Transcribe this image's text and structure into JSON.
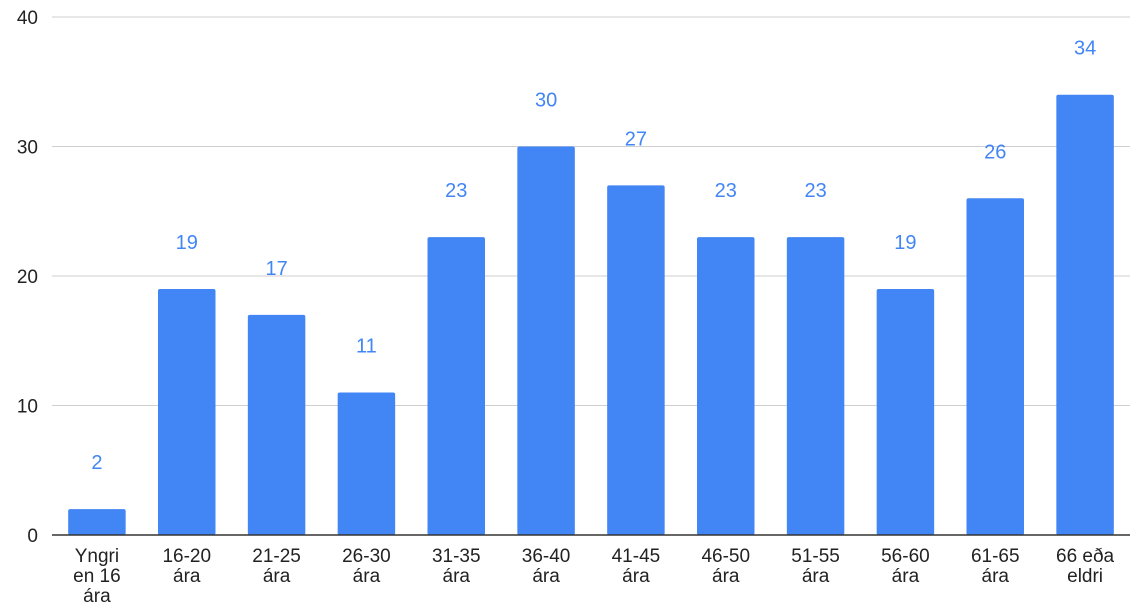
{
  "chart_data": {
    "type": "bar",
    "categories": [
      "Yngri en 16 ára",
      "16-20 ára",
      "21-25 ára",
      "26-30 ára",
      "31-35 ára",
      "36-40 ára",
      "41-45 ára",
      "46-50 ára",
      "51-55 ára",
      "56-60 ára",
      "61-65 ára",
      "66 eða eldri"
    ],
    "category_lines": [
      [
        "Yngri",
        "en 16",
        "ára"
      ],
      [
        "16-20",
        "ára"
      ],
      [
        "21-25",
        "ára"
      ],
      [
        "26-30",
        "ára"
      ],
      [
        "31-35",
        "ára"
      ],
      [
        "36-40",
        "ára"
      ],
      [
        "41-45",
        "ára"
      ],
      [
        "46-50",
        "ára"
      ],
      [
        "51-55",
        "ára"
      ],
      [
        "56-60",
        "ára"
      ],
      [
        "61-65",
        "ára"
      ],
      [
        "66 eða",
        "eldri"
      ]
    ],
    "values": [
      2,
      19,
      17,
      11,
      23,
      30,
      27,
      23,
      23,
      19,
      26,
      34
    ],
    "data_labels": [
      "2",
      "19",
      "17",
      "11",
      "23",
      "30",
      "27",
      "23",
      "23",
      "19",
      "26",
      "34"
    ],
    "title": "",
    "xlabel": "",
    "ylabel": "",
    "ylim": [
      0,
      40
    ],
    "yticks": [
      0,
      10,
      20,
      30,
      40
    ],
    "ytick_labels": [
      "0",
      "10",
      "20",
      "30",
      "40"
    ],
    "grid": true,
    "legend": "none",
    "bar_color": "#4285f4",
    "label_color": "#4285f4",
    "grid_color": "#cfcfcf",
    "axis_color": "#333333"
  }
}
